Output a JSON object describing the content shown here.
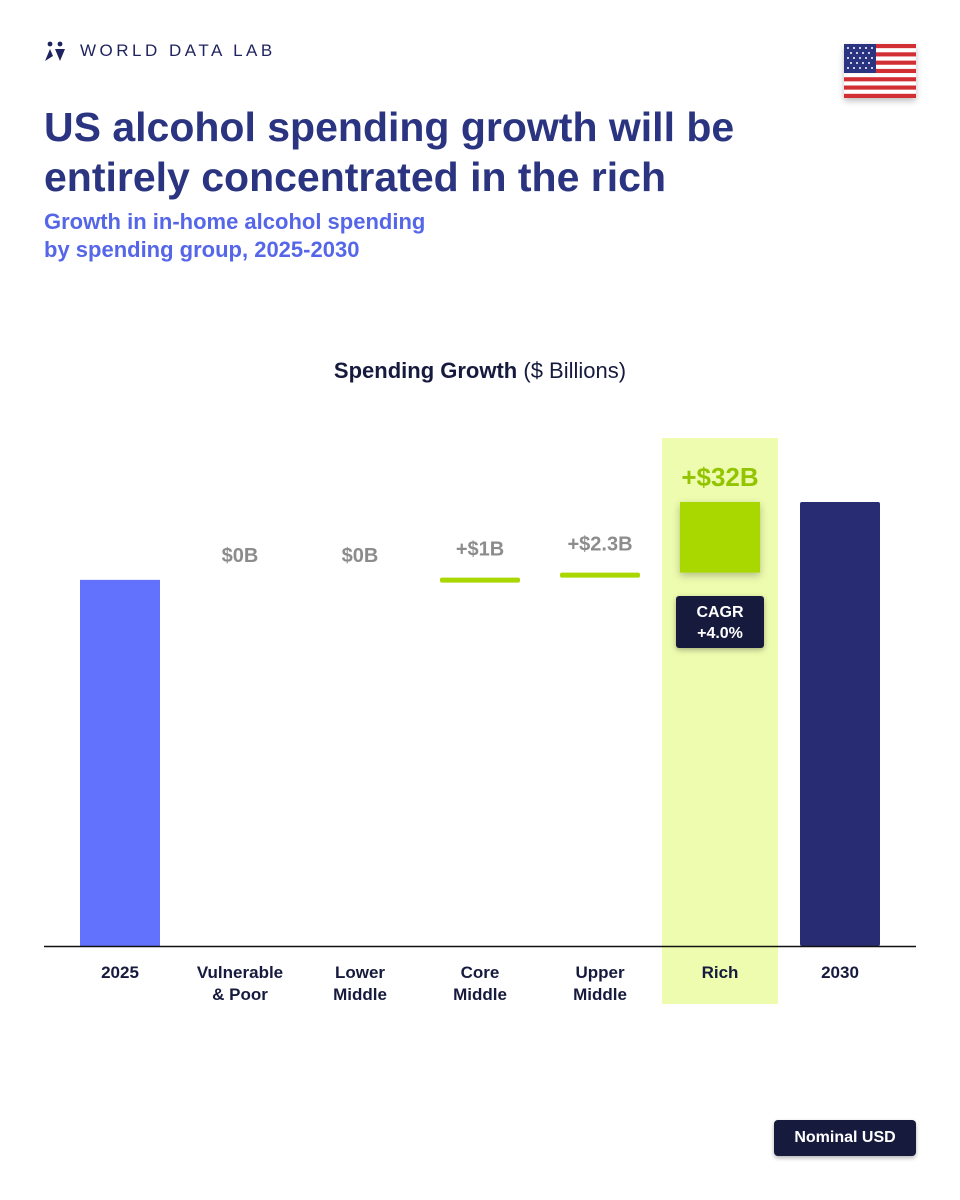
{
  "brand": {
    "name": "WORLD DATA LAB"
  },
  "title": "US alcohol spending growth will be entirely concentrated in the rich",
  "subtitle_line1": "Growth in in-home alcohol spending",
  "subtitle_line2": "by spending group, 2025-2030",
  "chart_heading": {
    "bold": "Spending Growth",
    "normal": "($ Billions)"
  },
  "note": "Nominal USD",
  "colors": {
    "start_bar": "#6272fd",
    "end_bar": "#282d73",
    "increase": "#a8d800",
    "highlight_bg": "#eefcb0",
    "label_gray": "#8c8c8c",
    "label_green": "#93c400",
    "dark": "#161a3d"
  },
  "chart_data": {
    "type": "waterfall",
    "title": "Spending Growth ($ Billions)",
    "categories": [
      "2025",
      "Vulnerable & Poor",
      "Lower Middle",
      "Core Middle",
      "Upper Middle",
      "Rich",
      "2030"
    ],
    "category_lines": [
      [
        "2025"
      ],
      [
        "Vulnerable",
        "& Poor"
      ],
      [
        "Lower",
        "Middle"
      ],
      [
        "Core",
        "Middle"
      ],
      [
        "Upper",
        "Middle"
      ],
      [
        "Rich"
      ],
      [
        "2030"
      ]
    ],
    "start_value": 166,
    "end_value": 201.3,
    "increments": [
      0,
      0,
      1,
      2.3,
      32
    ],
    "increment_labels": [
      "$0B",
      "$0B",
      "+$1B",
      "+$2.3B",
      "+$32B"
    ],
    "highlight_category": "Rich",
    "annotation": {
      "category": "Rich",
      "line1": "CAGR",
      "line2": "+4.0%"
    },
    "ymin": 0,
    "ymax": 210
  }
}
